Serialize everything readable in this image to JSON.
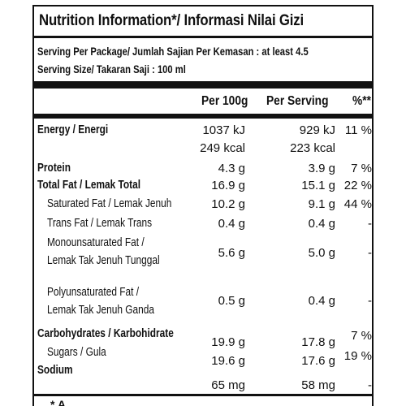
{
  "title": "Nutrition Information*/ Informasi Nilai Gizi",
  "serving_per_package": "Serving Per Package/ Jumlah Sajian Per Kemasan : at least 4.5",
  "serving_size": "Serving Size/ Takaran Saji : 100 ml",
  "headers": {
    "per100": "Per 100g",
    "perserving": "Per Serving",
    "pct": "%**"
  },
  "energy": {
    "label": "Energy / Energi",
    "kj100": "1037 kJ",
    "kjserv": "929 kJ",
    "pct": "11 %",
    "kcal100": "249 kcal",
    "kcalserv": "223 kcal"
  },
  "protein": {
    "label": "Protein",
    "v100": "4.3 g",
    "vserv": "3.9 g",
    "pct": "7 %"
  },
  "fat": {
    "label": "Total Fat / Lemak Total",
    "v100": "16.9 g",
    "vserv": "15.1 g",
    "pct": "22 %"
  },
  "satfat": {
    "label": "Saturated Fat / Lemak Jenuh",
    "v100": "10.2 g",
    "vserv": "9.1 g",
    "pct": "44 %"
  },
  "transfat": {
    "label": "Trans Fat / Lemak Trans",
    "v100": "0.4 g",
    "vserv": "0.4 g",
    "pct": "-"
  },
  "mono": {
    "label1": "Monounsaturated Fat /",
    "label2": "Lemak Tak Jenuh Tunggal",
    "v100": "5.6 g",
    "vserv": "5.0 g",
    "pct": "-"
  },
  "poly": {
    "label1": "Polyunsaturated Fat /",
    "label2": "Lemak Tak Jenuh Ganda",
    "v100": "0.5 g",
    "vserv": "0.4 g",
    "pct": "-"
  },
  "carb": {
    "label": "Carbohydrates / Karbohidrate",
    "v100": "19.9 g",
    "vserv": "17.8 g",
    "pct": "7 %"
  },
  "sugars": {
    "label": "Sugars / Gula",
    "v100": "19.6 g",
    "vserv": "17.6 g",
    "pct": "19 %"
  },
  "sodium": {
    "label": "Sodium",
    "v100": "65 mg",
    "vserv": "58 mg",
    "pct": "-"
  },
  "footnote": "* A"
}
